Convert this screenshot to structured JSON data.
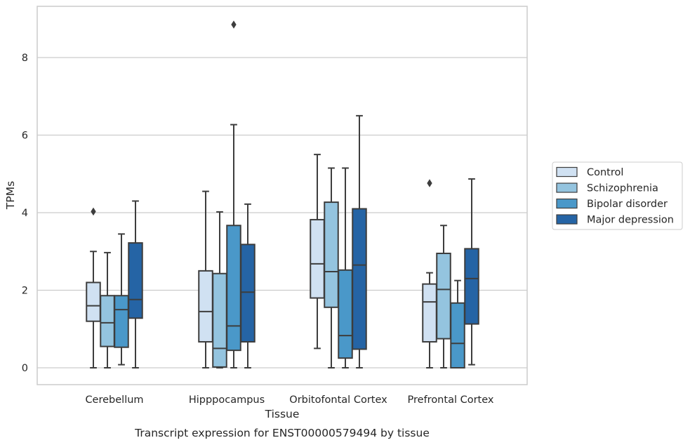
{
  "caption": "Transcript expression for ENST00000579494 by tissue",
  "chart_data": {
    "type": "box",
    "xlabel": "Tissue",
    "ylabel": "TPMs",
    "ylim": [
      -0.4,
      9.3
    ],
    "yticks": [
      0,
      2,
      4,
      6,
      8
    ],
    "grid": "horizontal",
    "legend_position": "right",
    "categories": [
      "Cerebellum",
      "Hipppocampus",
      "Orbitofontal Cortex",
      "Prefrontal Cortex"
    ],
    "series": [
      {
        "name": "Control",
        "color": "#d0e1f2",
        "boxes": [
          {
            "whislo": 0.0,
            "q1": 1.2,
            "med": 1.6,
            "q3": 2.2,
            "whishi": 3.0,
            "fliers": [
              4.03
            ]
          },
          {
            "whislo": 0.0,
            "q1": 0.67,
            "med": 1.45,
            "q3": 2.5,
            "whishi": 4.55,
            "fliers": []
          },
          {
            "whislo": 0.5,
            "q1": 1.8,
            "med": 2.68,
            "q3": 3.82,
            "whishi": 5.5,
            "fliers": []
          },
          {
            "whislo": 0.0,
            "q1": 0.67,
            "med": 1.7,
            "q3": 2.16,
            "whishi": 2.45,
            "fliers": [
              4.76
            ]
          }
        ]
      },
      {
        "name": "Schizophrenia",
        "color": "#94c4df",
        "boxes": [
          {
            "whislo": 0.0,
            "q1": 0.55,
            "med": 1.16,
            "q3": 1.86,
            "whishi": 2.97,
            "fliers": []
          },
          {
            "whislo": 0.0,
            "q1": 0.02,
            "med": 0.5,
            "q3": 2.43,
            "whishi": 4.02,
            "fliers": []
          },
          {
            "whislo": 0.0,
            "q1": 1.56,
            "med": 2.48,
            "q3": 4.27,
            "whishi": 5.15,
            "fliers": []
          },
          {
            "whislo": 0.0,
            "q1": 0.75,
            "med": 2.02,
            "q3": 2.95,
            "whishi": 3.67,
            "fliers": []
          }
        ]
      },
      {
        "name": "Bipolar disorder",
        "color": "#4a98c9",
        "boxes": [
          {
            "whislo": 0.08,
            "q1": 0.53,
            "med": 1.5,
            "q3": 1.86,
            "whishi": 3.45,
            "fliers": []
          },
          {
            "whislo": 0.0,
            "q1": 0.45,
            "med": 1.08,
            "q3": 3.67,
            "whishi": 6.27,
            "fliers": [
              8.85
            ]
          },
          {
            "whislo": 0.0,
            "q1": 0.25,
            "med": 0.83,
            "q3": 2.52,
            "whishi": 5.15,
            "fliers": []
          },
          {
            "whislo": 0.0,
            "q1": 0.0,
            "med": 0.63,
            "q3": 1.67,
            "whishi": 2.25,
            "fliers": []
          }
        ]
      },
      {
        "name": "Major depression",
        "color": "#2564a5",
        "boxes": [
          {
            "whislo": 0.0,
            "q1": 1.28,
            "med": 1.76,
            "q3": 3.22,
            "whishi": 4.3,
            "fliers": []
          },
          {
            "whislo": 0.0,
            "q1": 0.67,
            "med": 1.95,
            "q3": 3.18,
            "whishi": 4.22,
            "fliers": []
          },
          {
            "whislo": 0.0,
            "q1": 0.48,
            "med": 2.65,
            "q3": 4.1,
            "whishi": 6.5,
            "fliers": []
          },
          {
            "whislo": 0.08,
            "q1": 1.13,
            "med": 2.3,
            "q3": 3.07,
            "whishi": 4.87,
            "fliers": []
          }
        ]
      }
    ]
  }
}
